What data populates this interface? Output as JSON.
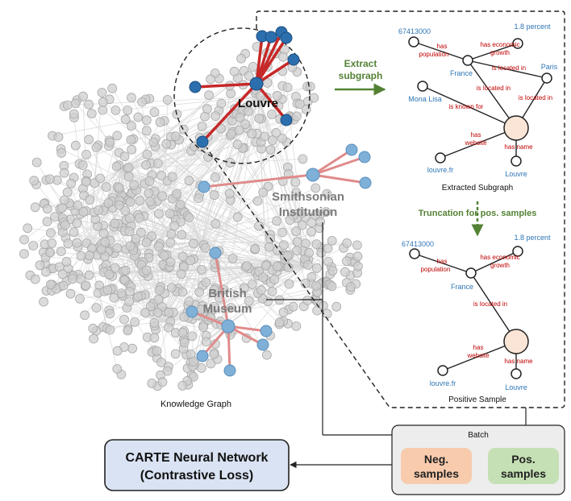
{
  "knowledge_graph": {
    "caption": "Knowledge Graph",
    "labels": {
      "louvre": "Louvre",
      "smithsonian_1": "Smithsonian",
      "smithsonian_2": "Institution",
      "british_1": "British",
      "british_2": "Museum"
    }
  },
  "extract": {
    "line1": "Extract",
    "line2": "subgraph"
  },
  "truncation": {
    "label": "Truncation for pos. samples"
  },
  "extracted_subgraph": {
    "caption": "Extracted Subgraph",
    "nodes": {
      "pop": "67413000",
      "growth": "1.8 percent",
      "france": "France",
      "paris": "Paris",
      "mona_lisa": "Mona Lisa",
      "website": "louvre.fr",
      "name": "Louvre"
    },
    "edges": {
      "has_population_1": "has",
      "has_population_2": "population",
      "has_growth_1": "has economic",
      "has_growth_2": "growth",
      "located_1": "is located in",
      "located_2": "is located in",
      "located_3": "is located in",
      "known_for": "is known for",
      "has_website_1": "has",
      "has_website_2": "website",
      "has_name_1": "has name"
    }
  },
  "positive_sample": {
    "caption": "Positive Sample",
    "nodes": {
      "pop": "67413000",
      "growth": "1.8 percent",
      "france": "France",
      "website": "louvre.fr",
      "name": "Louvre"
    },
    "edges": {
      "has_population_1": "has",
      "has_population_2": "population",
      "has_growth_1": "has economic",
      "has_growth_2": "growth",
      "located": "is located in",
      "has_website_1": "has",
      "has_website_2": "website",
      "has_name": "has name"
    }
  },
  "batch": {
    "title": "Batch",
    "neg_1": "Neg.",
    "neg_2": "samples",
    "pos_1": "Pos.",
    "pos_2": "samples"
  },
  "carte": {
    "line1_bold": "CARTE",
    "line1_rest": " Neural Network",
    "line2": "(Contrastive Loss)"
  },
  "colors": {
    "gray_node": "#c9c9c9",
    "dark_blue": "#2c6fae",
    "light_blue": "#7fb0d8",
    "red_edge": "#c62828",
    "pink_edge": "#e08b8b",
    "label_blue": "#2e75b6",
    "label_red": "#c00000",
    "green": "#548235",
    "neg_fill": "#f8cbad",
    "pos_fill": "#c5e0b4",
    "carte_fill": "#dae3f3",
    "batch_fill": "#ededed"
  }
}
